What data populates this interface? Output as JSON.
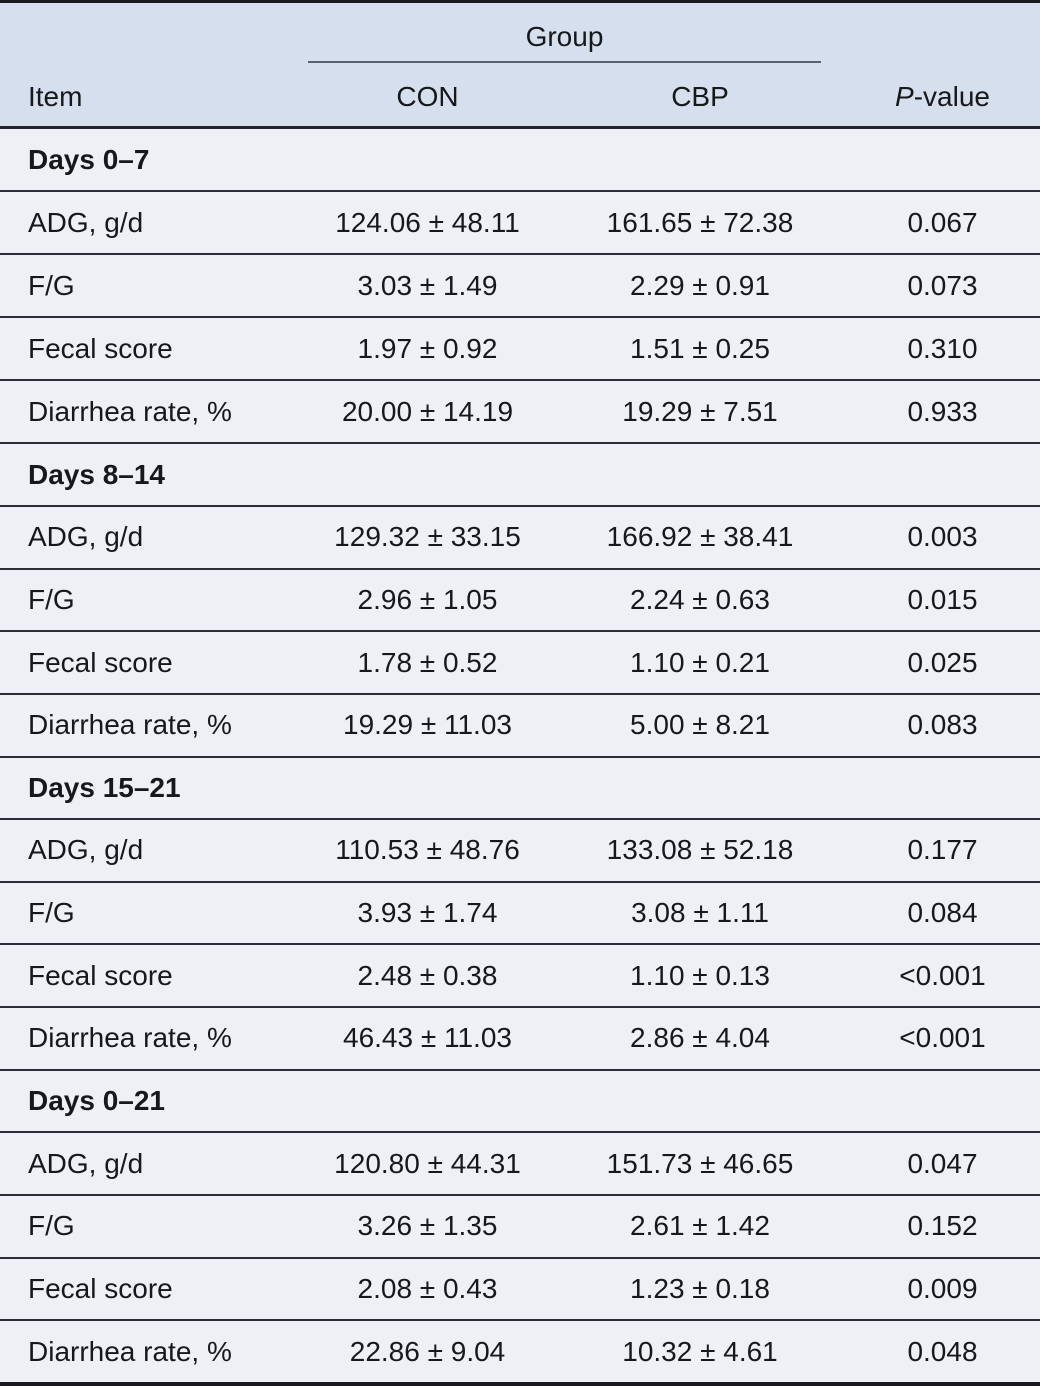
{
  "table": {
    "header": {
      "group_label": "Group",
      "item_label": "Item",
      "con_label": "CON",
      "cbp_label": "CBP",
      "pvalue_italic": "P",
      "pvalue_rest": "-value"
    },
    "colors": {
      "header_bg": "#d6dfee",
      "body_bg": "#eef0f5",
      "thick_rule": "#17191c",
      "row_rule": "#2a2d33",
      "group_underline": "#59616f"
    },
    "sections": [
      {
        "label": "Days 0–7",
        "rows": [
          {
            "item": "ADG, g/d",
            "con": "124.06 ± 48.11",
            "cbp": "161.65 ± 72.38",
            "p": "0.067"
          },
          {
            "item": "F/G",
            "con": "3.03 ± 1.49",
            "cbp": "2.29 ± 0.91",
            "p": "0.073"
          },
          {
            "item": "Fecal score",
            "con": "1.97 ± 0.92",
            "cbp": "1.51 ± 0.25",
            "p": "0.310"
          },
          {
            "item": "Diarrhea rate, %",
            "con": "20.00 ± 14.19",
            "cbp": "19.29 ± 7.51",
            "p": "0.933"
          }
        ]
      },
      {
        "label": "Days 8–14",
        "rows": [
          {
            "item": "ADG, g/d",
            "con": "129.32 ± 33.15",
            "cbp": "166.92 ± 38.41",
            "p": "0.003"
          },
          {
            "item": "F/G",
            "con": "2.96 ± 1.05",
            "cbp": "2.24 ± 0.63",
            "p": "0.015"
          },
          {
            "item": "Fecal score",
            "con": "1.78 ± 0.52",
            "cbp": "1.10 ± 0.21",
            "p": "0.025"
          },
          {
            "item": "Diarrhea rate, %",
            "con": "19.29 ± 11.03",
            "cbp": "5.00 ± 8.21",
            "p": "0.083"
          }
        ]
      },
      {
        "label": "Days 15–21",
        "rows": [
          {
            "item": "ADG, g/d",
            "con": "110.53 ± 48.76",
            "cbp": "133.08 ± 52.18",
            "p": "0.177"
          },
          {
            "item": "F/G",
            "con": "3.93 ± 1.74",
            "cbp": "3.08 ± 1.11",
            "p": "0.084"
          },
          {
            "item": "Fecal score",
            "con": "2.48 ± 0.38",
            "cbp": "1.10 ± 0.13",
            "p": "<0.001"
          },
          {
            "item": "Diarrhea rate, %",
            "con": "46.43 ± 11.03",
            "cbp": "2.86 ± 4.04",
            "p": "<0.001"
          }
        ]
      },
      {
        "label": "Days 0–21",
        "rows": [
          {
            "item": "ADG, g/d",
            "con": "120.80 ± 44.31",
            "cbp": "151.73 ± 46.65",
            "p": "0.047"
          },
          {
            "item": "F/G",
            "con": "3.26 ± 1.35",
            "cbp": "2.61 ± 1.42",
            "p": "0.152"
          },
          {
            "item": "Fecal score",
            "con": "2.08 ± 0.43",
            "cbp": "1.23 ± 0.18",
            "p": "0.009"
          },
          {
            "item": "Diarrhea rate, %",
            "con": "22.86 ± 9.04",
            "cbp": "10.32 ± 4.61",
            "p": "0.048"
          }
        ]
      }
    ]
  }
}
